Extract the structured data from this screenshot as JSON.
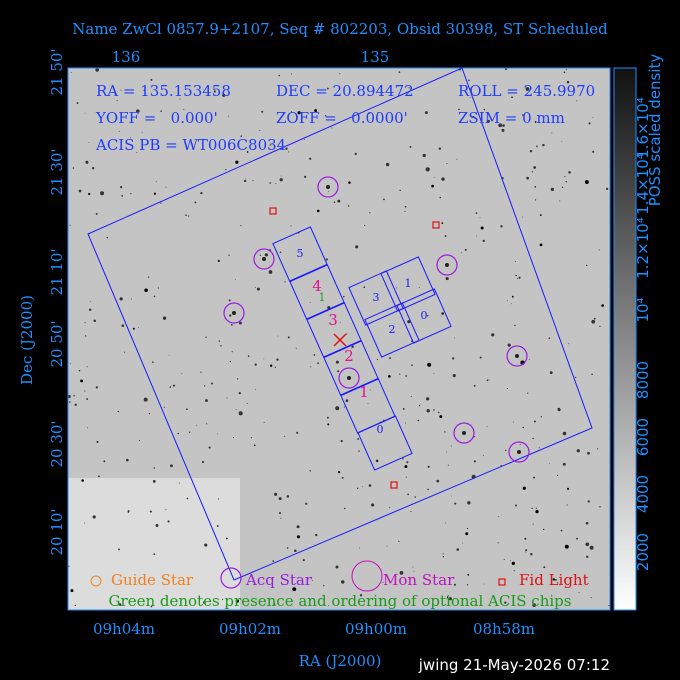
{
  "header": {
    "title": "Name ZwCl 0857.9+2107, Seq # 802203, Obsid 30398, ST Scheduled"
  },
  "axes": {
    "top_ticks": [
      "136",
      "135"
    ],
    "left_ticks": [
      "21 50'",
      "21 30'",
      "21 10'",
      "20 50'",
      "20 30'",
      "20 10'"
    ],
    "left_label": "Dec (J2000)",
    "bottom_ticks": [
      "09h04m",
      "09h02m",
      "09h00m",
      "08h58m"
    ],
    "bottom_label": "RA (J2000)"
  },
  "colorbar": {
    "ticks": [
      "2000",
      "4000",
      "6000",
      "8000",
      "10⁴",
      "1.2×10⁴",
      "1.4×10⁴",
      "1.6×10⁴"
    ],
    "label": "POSS scaled density"
  },
  "info": [
    "RA = 135.153458",
    "DEC = 20.894472",
    "ROLL = 245.9970",
    "YOFF =   0.000'",
    "ZOFF =   0.0000'",
    "ZSIM = 0 mm",
    "ACIS PB = WT006C8034"
  ],
  "chips": {
    "s_labels": [
      "5",
      "0"
    ],
    "i_labels": [
      "3",
      "1",
      "2",
      "0"
    ],
    "order_labels": [
      "4",
      "3",
      "2",
      "1"
    ],
    "optional_label": "1"
  },
  "legend": {
    "guide": "Guide Star",
    "acq": "Acq Star",
    "mon": "Mon Star",
    "fid": "Fid Light",
    "note": "Green denotes presence and ordering of optional ACIS chips"
  },
  "footer": "jwing 21-May-2026 07:12"
}
